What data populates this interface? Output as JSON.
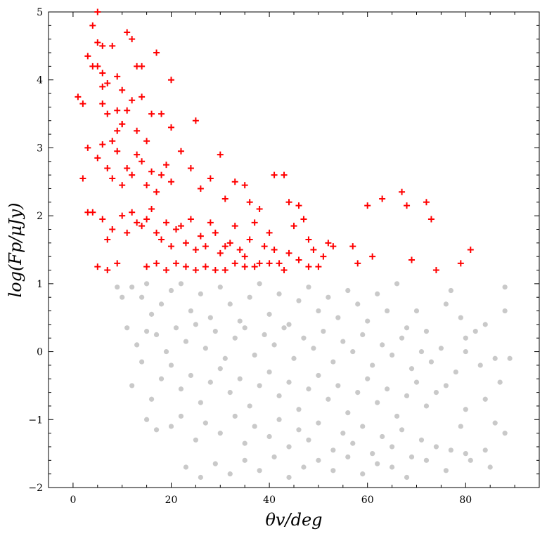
{
  "chart_data": {
    "type": "scatter",
    "title": "",
    "xlabel": "θv/deg",
    "ylabel": "log(Fp/μJy)",
    "xlim": [
      -5,
      95
    ],
    "ylim": [
      -2,
      5
    ],
    "x_ticks": [
      0,
      20,
      40,
      60,
      80
    ],
    "y_ticks": [
      -2,
      -1,
      0,
      1,
      2,
      3,
      4,
      5
    ],
    "x_tick_labels": [
      "0",
      "20",
      "40",
      "60",
      "80"
    ],
    "y_tick_labels": [
      "−2",
      "−1",
      "0",
      "1",
      "2",
      "3",
      "4",
      "5"
    ],
    "grid": false,
    "legend": "none",
    "series": [
      {
        "marker": "plus",
        "color": "#ff0000",
        "points": [
          [
            5,
            5.0
          ],
          [
            3,
            4.35
          ],
          [
            4,
            4.8
          ],
          [
            5,
            4.55
          ],
          [
            6,
            4.5
          ],
          [
            11,
            4.7
          ],
          [
            12,
            4.6
          ],
          [
            4,
            4.2
          ],
          [
            5,
            4.2
          ],
          [
            6,
            4.1
          ],
          [
            8,
            4.5
          ],
          [
            1,
            3.75
          ],
          [
            2,
            3.65
          ],
          [
            6,
            3.9
          ],
          [
            7,
            3.95
          ],
          [
            9,
            4.05
          ],
          [
            10,
            3.85
          ],
          [
            13,
            4.2
          ],
          [
            14,
            4.2
          ],
          [
            17,
            4.4
          ],
          [
            20,
            4.0
          ],
          [
            6,
            3.65
          ],
          [
            7,
            3.5
          ],
          [
            9,
            3.55
          ],
          [
            10,
            3.35
          ],
          [
            11,
            3.55
          ],
          [
            12,
            3.7
          ],
          [
            14,
            3.75
          ],
          [
            16,
            3.5
          ],
          [
            8,
            3.1
          ],
          [
            9,
            3.25
          ],
          [
            10,
            3.35
          ],
          [
            13,
            3.25
          ],
          [
            15,
            3.1
          ],
          [
            18,
            3.5
          ],
          [
            20,
            3.3
          ],
          [
            25,
            3.4
          ],
          [
            2,
            2.55
          ],
          [
            3,
            3.0
          ],
          [
            5,
            2.85
          ],
          [
            6,
            3.05
          ],
          [
            7,
            2.7
          ],
          [
            8,
            2.55
          ],
          [
            9,
            2.95
          ],
          [
            10,
            2.45
          ],
          [
            11,
            2.7
          ],
          [
            12,
            2.6
          ],
          [
            13,
            2.9
          ],
          [
            14,
            2.8
          ],
          [
            15,
            2.45
          ],
          [
            16,
            2.65
          ],
          [
            17,
            2.35
          ],
          [
            18,
            2.6
          ],
          [
            19,
            2.75
          ],
          [
            20,
            2.5
          ],
          [
            22,
            2.95
          ],
          [
            24,
            2.7
          ],
          [
            26,
            2.4
          ],
          [
            28,
            2.55
          ],
          [
            30,
            2.9
          ],
          [
            31,
            2.25
          ],
          [
            33,
            2.5
          ],
          [
            35,
            2.45
          ],
          [
            36,
            2.2
          ],
          [
            38,
            2.1
          ],
          [
            41,
            2.6
          ],
          [
            43,
            2.6
          ],
          [
            44,
            2.2
          ],
          [
            46,
            2.15
          ],
          [
            47,
            1.95
          ],
          [
            3,
            2.05
          ],
          [
            4,
            2.05
          ],
          [
            6,
            1.95
          ],
          [
            7,
            1.65
          ],
          [
            8,
            1.8
          ],
          [
            10,
            2.0
          ],
          [
            11,
            1.75
          ],
          [
            12,
            2.05
          ],
          [
            13,
            1.9
          ],
          [
            14,
            1.85
          ],
          [
            15,
            1.95
          ],
          [
            16,
            2.1
          ],
          [
            17,
            1.75
          ],
          [
            18,
            1.65
          ],
          [
            19,
            1.9
          ],
          [
            20,
            1.55
          ],
          [
            21,
            1.8
          ],
          [
            22,
            1.85
          ],
          [
            23,
            1.6
          ],
          [
            24,
            1.95
          ],
          [
            25,
            1.5
          ],
          [
            26,
            1.7
          ],
          [
            27,
            1.55
          ],
          [
            28,
            1.9
          ],
          [
            29,
            1.75
          ],
          [
            30,
            1.45
          ],
          [
            31,
            1.55
          ],
          [
            32,
            1.6
          ],
          [
            33,
            1.85
          ],
          [
            34,
            1.5
          ],
          [
            35,
            1.4
          ],
          [
            36,
            1.65
          ],
          [
            37,
            1.9
          ],
          [
            38,
            1.3
          ],
          [
            39,
            1.55
          ],
          [
            40,
            1.75
          ],
          [
            41,
            1.5
          ],
          [
            42,
            1.3
          ],
          [
            44,
            1.45
          ],
          [
            45,
            1.85
          ],
          [
            46,
            1.35
          ],
          [
            48,
            1.65
          ],
          [
            49,
            1.5
          ],
          [
            50,
            1.25
          ],
          [
            51,
            1.4
          ],
          [
            52,
            1.6
          ],
          [
            53,
            1.55
          ],
          [
            5,
            1.25
          ],
          [
            7,
            1.2
          ],
          [
            9,
            1.3
          ],
          [
            15,
            1.25
          ],
          [
            17,
            1.3
          ],
          [
            19,
            1.2
          ],
          [
            21,
            1.3
          ],
          [
            23,
            1.25
          ],
          [
            25,
            1.2
          ],
          [
            27,
            1.25
          ],
          [
            29,
            1.2
          ],
          [
            31,
            1.2
          ],
          [
            33,
            1.3
          ],
          [
            35,
            1.25
          ],
          [
            37,
            1.25
          ],
          [
            40,
            1.3
          ],
          [
            43,
            1.2
          ],
          [
            48,
            1.25
          ],
          [
            57,
            1.55
          ],
          [
            58,
            1.3
          ],
          [
            60,
            2.15
          ],
          [
            61,
            1.4
          ],
          [
            63,
            2.25
          ],
          [
            67,
            2.35
          ],
          [
            68,
            2.15
          ],
          [
            69,
            1.35
          ],
          [
            72,
            2.2
          ],
          [
            73,
            1.95
          ],
          [
            74,
            1.2
          ],
          [
            79,
            1.3
          ],
          [
            81,
            1.5
          ]
        ]
      },
      {
        "marker": "circle",
        "color": "#888888",
        "opacity": 0.45,
        "points": [
          [
            9,
            0.95
          ],
          [
            10,
            0.8
          ],
          [
            12,
            0.95
          ],
          [
            14,
            0.8
          ],
          [
            15,
            1.0
          ],
          [
            16,
            0.55
          ],
          [
            18,
            0.7
          ],
          [
            20,
            0.9
          ],
          [
            22,
            1.0
          ],
          [
            24,
            0.6
          ],
          [
            26,
            0.85
          ],
          [
            28,
            0.5
          ],
          [
            30,
            0.95
          ],
          [
            32,
            0.7
          ],
          [
            34,
            0.45
          ],
          [
            36,
            0.8
          ],
          [
            38,
            1.0
          ],
          [
            40,
            0.55
          ],
          [
            42,
            0.85
          ],
          [
            44,
            0.4
          ],
          [
            46,
            0.75
          ],
          [
            48,
            0.95
          ],
          [
            50,
            0.6
          ],
          [
            52,
            0.8
          ],
          [
            54,
            0.5
          ],
          [
            56,
            0.9
          ],
          [
            58,
            0.7
          ],
          [
            60,
            0.45
          ],
          [
            62,
            0.85
          ],
          [
            64,
            0.6
          ],
          [
            66,
            1.0
          ],
          [
            68,
            0.35
          ],
          [
            70,
            0.6
          ],
          [
            72,
            0.3
          ],
          [
            76,
            0.7
          ],
          [
            77,
            0.9
          ],
          [
            79,
            0.5
          ],
          [
            80,
            0.2
          ],
          [
            82,
            0.3
          ],
          [
            84,
            0.4
          ],
          [
            88,
            0.95
          ],
          [
            88,
            0.6
          ],
          [
            11,
            0.35
          ],
          [
            13,
            0.1
          ],
          [
            15,
            0.3
          ],
          [
            17,
            0.25
          ],
          [
            19,
            0.0
          ],
          [
            21,
            0.35
          ],
          [
            23,
            0.15
          ],
          [
            25,
            0.4
          ],
          [
            27,
            0.05
          ],
          [
            29,
            0.3
          ],
          [
            31,
            -0.1
          ],
          [
            33,
            0.2
          ],
          [
            35,
            0.35
          ],
          [
            37,
            -0.05
          ],
          [
            39,
            0.25
          ],
          [
            41,
            0.1
          ],
          [
            43,
            0.35
          ],
          [
            45,
            -0.1
          ],
          [
            47,
            0.2
          ],
          [
            49,
            0.05
          ],
          [
            51,
            0.3
          ],
          [
            53,
            -0.15
          ],
          [
            55,
            0.15
          ],
          [
            57,
            0.0
          ],
          [
            59,
            0.25
          ],
          [
            61,
            -0.2
          ],
          [
            63,
            0.1
          ],
          [
            65,
            -0.05
          ],
          [
            67,
            0.2
          ],
          [
            69,
            -0.25
          ],
          [
            71,
            0.0
          ],
          [
            73,
            -0.15
          ],
          [
            75,
            0.05
          ],
          [
            78,
            -0.3
          ],
          [
            80,
            0.0
          ],
          [
            83,
            -0.2
          ],
          [
            86,
            -0.1
          ],
          [
            89,
            -0.1
          ],
          [
            12,
            -0.5
          ],
          [
            14,
            -0.15
          ],
          [
            16,
            -0.7
          ],
          [
            18,
            -0.4
          ],
          [
            20,
            -0.2
          ],
          [
            22,
            -0.55
          ],
          [
            24,
            -0.35
          ],
          [
            26,
            -0.75
          ],
          [
            28,
            -0.45
          ],
          [
            30,
            -0.25
          ],
          [
            32,
            -0.6
          ],
          [
            34,
            -0.4
          ],
          [
            36,
            -0.8
          ],
          [
            38,
            -0.5
          ],
          [
            40,
            -0.3
          ],
          [
            42,
            -0.65
          ],
          [
            44,
            -0.45
          ],
          [
            46,
            -0.85
          ],
          [
            48,
            -0.55
          ],
          [
            50,
            -0.35
          ],
          [
            52,
            -0.7
          ],
          [
            54,
            -0.5
          ],
          [
            56,
            -0.9
          ],
          [
            58,
            -0.6
          ],
          [
            60,
            -0.4
          ],
          [
            62,
            -0.75
          ],
          [
            64,
            -0.55
          ],
          [
            66,
            -0.95
          ],
          [
            68,
            -0.65
          ],
          [
            70,
            -0.45
          ],
          [
            72,
            -0.8
          ],
          [
            74,
            -0.6
          ],
          [
            76,
            -0.5
          ],
          [
            80,
            -0.85
          ],
          [
            84,
            -0.7
          ],
          [
            87,
            -0.45
          ],
          [
            15,
            -1.0
          ],
          [
            17,
            -1.15
          ],
          [
            20,
            -1.1
          ],
          [
            22,
            -0.95
          ],
          [
            25,
            -1.3
          ],
          [
            27,
            -1.05
          ],
          [
            30,
            -1.2
          ],
          [
            33,
            -0.95
          ],
          [
            35,
            -1.35
          ],
          [
            37,
            -1.1
          ],
          [
            40,
            -1.25
          ],
          [
            42,
            -1.0
          ],
          [
            44,
            -1.4
          ],
          [
            46,
            -1.15
          ],
          [
            48,
            -1.3
          ],
          [
            50,
            -1.05
          ],
          [
            53,
            -1.45
          ],
          [
            55,
            -1.2
          ],
          [
            57,
            -1.35
          ],
          [
            59,
            -1.1
          ],
          [
            61,
            -1.5
          ],
          [
            63,
            -1.25
          ],
          [
            65,
            -1.4
          ],
          [
            67,
            -1.15
          ],
          [
            69,
            -1.55
          ],
          [
            71,
            -1.3
          ],
          [
            74,
            -1.4
          ],
          [
            77,
            -1.45
          ],
          [
            79,
            -1.1
          ],
          [
            81,
            -1.6
          ],
          [
            84,
            -1.45
          ],
          [
            86,
            -1.05
          ],
          [
            88,
            -1.2
          ],
          [
            23,
            -1.7
          ],
          [
            26,
            -1.85
          ],
          [
            29,
            -1.65
          ],
          [
            32,
            -1.8
          ],
          [
            35,
            -1.6
          ],
          [
            38,
            -1.75
          ],
          [
            41,
            -1.55
          ],
          [
            44,
            -1.85
          ],
          [
            47,
            -1.7
          ],
          [
            50,
            -1.6
          ],
          [
            53,
            -1.75
          ],
          [
            56,
            -1.55
          ],
          [
            59,
            -1.8
          ],
          [
            62,
            -1.65
          ],
          [
            65,
            -1.7
          ],
          [
            68,
            -1.85
          ],
          [
            72,
            -1.6
          ],
          [
            76,
            -1.75
          ],
          [
            80,
            -1.5
          ],
          [
            85,
            -1.7
          ]
        ]
      }
    ]
  }
}
